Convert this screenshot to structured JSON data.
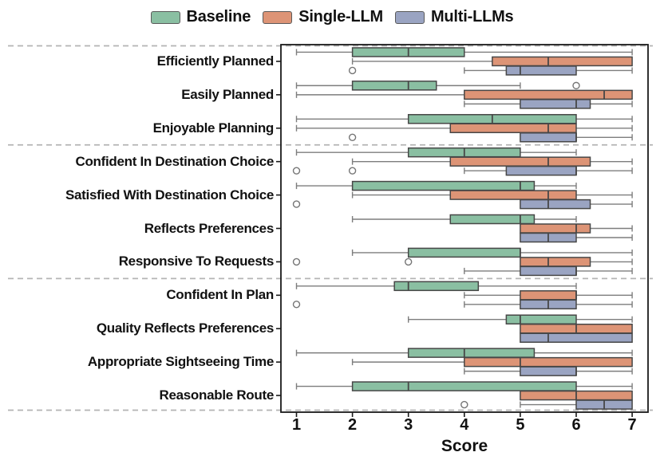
{
  "chart_data": {
    "type": "boxplot",
    "orientation": "horizontal",
    "title": "",
    "xlabel": "Score",
    "ylabel": "",
    "x_tick_labels": [
      "1",
      "2",
      "3",
      "4",
      "5",
      "6",
      "7"
    ],
    "xlim": [
      0.72,
      7.28
    ],
    "grid": false,
    "legend_position": "top-center",
    "categories": [
      "Efficiently Planned",
      "Easily Planned",
      "Enjoyable Planning",
      "Confident In Destination Choice",
      "Satisfied With Destination Choice",
      "Reflects Preferences",
      "Responsive To Requests",
      "Confident In Plan",
      "Quality Reflects Preferences",
      "Appropriate Sightseeing Time",
      "Reasonable Route"
    ],
    "group_separators_after_category_index": [
      2,
      6
    ],
    "series": [
      {
        "name": "Baseline",
        "color": "#8abfa2",
        "boxes": [
          {
            "lo": 1,
            "q1": 2,
            "med": 3,
            "q3": 4,
            "hi": 7,
            "outliers": []
          },
          {
            "lo": 1,
            "q1": 2,
            "med": 3,
            "q3": 3.5,
            "hi": 5,
            "outliers": [
              6
            ]
          },
          {
            "lo": 1,
            "q1": 3,
            "med": 4.5,
            "q3": 6,
            "hi": 7,
            "outliers": []
          },
          {
            "lo": 1,
            "q1": 3,
            "med": 4,
            "q3": 5,
            "hi": 6,
            "outliers": []
          },
          {
            "lo": 1,
            "q1": 2,
            "med": 5,
            "q3": 5.25,
            "hi": 6,
            "outliers": []
          },
          {
            "lo": 2,
            "q1": 3.75,
            "med": 5,
            "q3": 5.25,
            "hi": 6,
            "outliers": []
          },
          {
            "lo": 2,
            "q1": 3,
            "med": 5,
            "q3": 5,
            "hi": 7,
            "outliers": []
          },
          {
            "lo": 1,
            "q1": 2.75,
            "med": 3,
            "q3": 4.25,
            "hi": 6,
            "outliers": []
          },
          {
            "lo": 3,
            "q1": 4.75,
            "med": 5,
            "q3": 6,
            "hi": 7,
            "outliers": []
          },
          {
            "lo": 1,
            "q1": 3,
            "med": 4,
            "q3": 5.25,
            "hi": 7,
            "outliers": []
          },
          {
            "lo": 1,
            "q1": 2,
            "med": 3,
            "q3": 6,
            "hi": 7,
            "outliers": []
          }
        ]
      },
      {
        "name": "Single-LLM",
        "color": "#dd9476",
        "boxes": [
          {
            "lo": 2,
            "q1": 4.5,
            "med": 5.5,
            "q3": 7,
            "hi": 7,
            "outliers": []
          },
          {
            "lo": 1,
            "q1": 4,
            "med": 6.5,
            "q3": 7,
            "hi": 7,
            "outliers": []
          },
          {
            "lo": 1,
            "q1": 3.75,
            "med": 5.5,
            "q3": 6,
            "hi": 7,
            "outliers": []
          },
          {
            "lo": 2,
            "q1": 3.75,
            "med": 5.5,
            "q3": 6.25,
            "hi": 7,
            "outliers": []
          },
          {
            "lo": 2,
            "q1": 3.75,
            "med": 5.5,
            "q3": 6,
            "hi": 7,
            "outliers": []
          },
          {
            "lo": 5,
            "q1": 5,
            "med": 6,
            "q3": 6.25,
            "hi": 7,
            "outliers": []
          },
          {
            "lo": 5,
            "q1": 5,
            "med": 5.5,
            "q3": 6.25,
            "hi": 7,
            "outliers": [
              1,
              3
            ]
          },
          {
            "lo": 4,
            "q1": 5,
            "med": 6,
            "q3": 6,
            "hi": 7,
            "outliers": []
          },
          {
            "lo": 5,
            "q1": 5,
            "med": 6,
            "q3": 7,
            "hi": 7,
            "outliers": []
          },
          {
            "lo": 2,
            "q1": 4,
            "med": 5,
            "q3": 7,
            "hi": 7,
            "outliers": []
          },
          {
            "lo": 5,
            "q1": 5,
            "med": 6,
            "q3": 7,
            "hi": 7,
            "outliers": []
          }
        ]
      },
      {
        "name": "Multi-LLMs",
        "color": "#9aa4c2",
        "boxes": [
          {
            "lo": 4,
            "q1": 4.75,
            "med": 5,
            "q3": 6,
            "hi": 7,
            "outliers": [
              2
            ]
          },
          {
            "lo": 4,
            "q1": 5,
            "med": 6,
            "q3": 6.25,
            "hi": 7,
            "outliers": []
          },
          {
            "lo": 5,
            "q1": 5,
            "med": 6,
            "q3": 6,
            "hi": 7,
            "outliers": [
              2
            ]
          },
          {
            "lo": 4,
            "q1": 4.75,
            "med": 6,
            "q3": 6,
            "hi": 7,
            "outliers": [
              1,
              2
            ]
          },
          {
            "lo": 5,
            "q1": 5,
            "med": 5.5,
            "q3": 6.25,
            "hi": 7,
            "outliers": [
              1
            ]
          },
          {
            "lo": 5,
            "q1": 5,
            "med": 5.5,
            "q3": 6,
            "hi": 7,
            "outliers": []
          },
          {
            "lo": 4,
            "q1": 5,
            "med": 6,
            "q3": 6,
            "hi": 7,
            "outliers": []
          },
          {
            "lo": 4,
            "q1": 5,
            "med": 5.5,
            "q3": 6,
            "hi": 7,
            "outliers": [
              1
            ]
          },
          {
            "lo": 5,
            "q1": 5,
            "med": 5.5,
            "q3": 7,
            "hi": 7,
            "outliers": []
          },
          {
            "lo": 4,
            "q1": 5,
            "med": 6,
            "q3": 6,
            "hi": 7,
            "outliers": []
          },
          {
            "lo": 5,
            "q1": 6,
            "med": 6.5,
            "q3": 7,
            "hi": 7,
            "outliers": [
              4
            ]
          }
        ]
      }
    ],
    "style": {
      "box_edge": "#474747",
      "whisker": "#7d7d7d",
      "spine": "#1a1a1a",
      "separator": "#b4b4b4",
      "flier_edge": "#757575",
      "background": "#ffffff"
    }
  }
}
